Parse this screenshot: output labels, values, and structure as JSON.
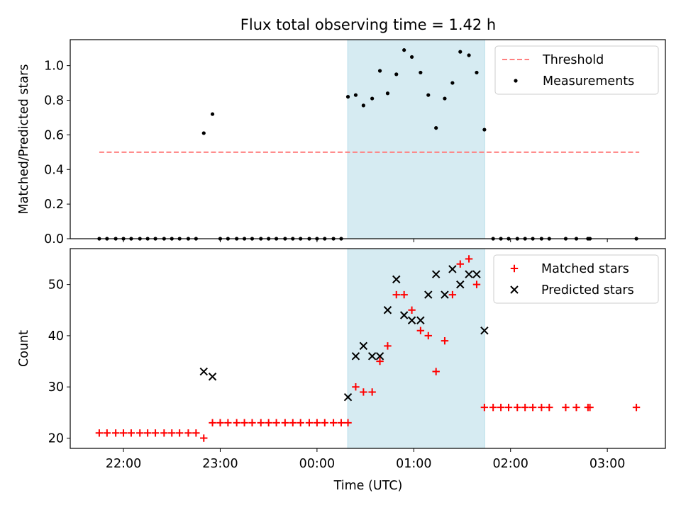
{
  "chart_data": {
    "type": "scatter",
    "title": "Flux total observing time = 1.42 h",
    "xlabel": "Time (UTC)",
    "x_ticks": [
      "22:00",
      "23:00",
      "00:00",
      "01:00",
      "02:00",
      "03:00"
    ],
    "x_tick_hours": [
      22.0,
      23.0,
      24.0,
      25.0,
      26.0,
      27.0
    ],
    "x_range_hours": [
      21.45,
      27.6
    ],
    "shaded_interval_hours": [
      24.317,
      25.733
    ],
    "shade_color": "#add8e6",
    "panels": [
      {
        "ylabel": "Matched/Predicted stars",
        "ylim": [
          0,
          1.15
        ],
        "yticks": [
          "0.0",
          "0.2",
          "0.4",
          "0.6",
          "0.8",
          "1.0"
        ],
        "ytick_values": [
          0,
          0.2,
          0.4,
          0.6,
          0.8,
          1.0
        ],
        "legend": {
          "position": "upper right",
          "entries": [
            "Threshold",
            "Measurements"
          ]
        },
        "series": [
          {
            "name": "Threshold",
            "type": "line",
            "style": "dashed",
            "color": "#ff8080",
            "x": [
              21.75,
              27.33
            ],
            "y": [
              0.5,
              0.5
            ]
          },
          {
            "name": "Measurements",
            "type": "scatter",
            "marker": "dot",
            "color": "#000000",
            "x": [
              21.75,
              21.83,
              21.92,
              22.0,
              22.08,
              22.17,
              22.25,
              22.33,
              22.42,
              22.5,
              22.58,
              22.67,
              22.75,
              22.83,
              22.92,
              23.0,
              23.08,
              23.17,
              23.25,
              23.33,
              23.42,
              23.5,
              23.58,
              23.67,
              23.75,
              23.83,
              23.92,
              24.0,
              24.08,
              24.17,
              24.25,
              24.32,
              24.4,
              24.48,
              24.57,
              24.65,
              24.73,
              24.82,
              24.9,
              24.98,
              25.07,
              25.15,
              25.23,
              25.32,
              25.4,
              25.48,
              25.57,
              25.65,
              25.73,
              25.82,
              25.9,
              25.98,
              26.07,
              26.15,
              26.23,
              26.32,
              26.4,
              26.57,
              26.68,
              26.8,
              26.82,
              27.3
            ],
            "y": [
              0,
              0,
              0,
              0,
              0,
              0,
              0,
              0,
              0,
              0,
              0,
              0,
              0,
              0.61,
              0.72,
              0,
              0,
              0,
              0,
              0,
              0,
              0,
              0,
              0,
              0,
              0,
              0,
              0,
              0,
              0,
              0,
              0.82,
              0.83,
              0.77,
              0.81,
              0.97,
              0.84,
              0.95,
              1.09,
              1.05,
              0.96,
              0.83,
              0.64,
              0.81,
              0.9,
              1.08,
              1.06,
              0.96,
              0.63,
              0,
              0,
              0,
              0,
              0,
              0,
              0,
              0,
              0,
              0,
              0,
              0,
              0
            ]
          }
        ]
      },
      {
        "ylabel": "Count",
        "ylim": [
          18,
          57
        ],
        "yticks": [
          "20",
          "30",
          "40",
          "50"
        ],
        "ytick_values": [
          20,
          30,
          40,
          50
        ],
        "legend": {
          "position": "upper right",
          "entries": [
            "Matched stars",
            "Predicted stars"
          ]
        },
        "series": [
          {
            "name": "Matched stars",
            "type": "scatter",
            "marker": "plus",
            "color": "#ff0000",
            "x": [
              21.75,
              21.83,
              21.92,
              22.0,
              22.08,
              22.17,
              22.25,
              22.33,
              22.42,
              22.5,
              22.58,
              22.67,
              22.75,
              22.83,
              22.92,
              23.0,
              23.08,
              23.17,
              23.25,
              23.33,
              23.42,
              23.5,
              23.58,
              23.67,
              23.75,
              23.83,
              23.92,
              24.0,
              24.08,
              24.17,
              24.25,
              24.32,
              24.4,
              24.48,
              24.57,
              24.65,
              24.73,
              24.82,
              24.9,
              24.98,
              25.07,
              25.15,
              25.23,
              25.32,
              25.4,
              25.48,
              25.57,
              25.65,
              25.73,
              25.82,
              25.9,
              25.98,
              26.07,
              26.15,
              26.23,
              26.32,
              26.4,
              26.57,
              26.68,
              26.8,
              26.82,
              27.3
            ],
            "y": [
              21,
              21,
              21,
              21,
              21,
              21,
              21,
              21,
              21,
              21,
              21,
              21,
              21,
              20,
              23,
              23,
              23,
              23,
              23,
              23,
              23,
              23,
              23,
              23,
              23,
              23,
              23,
              23,
              23,
              23,
              23,
              23,
              30,
              29,
              29,
              35,
              38,
              48,
              48,
              45,
              41,
              40,
              33,
              39,
              48,
              54,
              55,
              50,
              26,
              26,
              26,
              26,
              26,
              26,
              26,
              26,
              26,
              26,
              26,
              26,
              26,
              26
            ]
          },
          {
            "name": "Predicted stars",
            "type": "scatter",
            "marker": "x",
            "color": "#000000",
            "x": [
              22.83,
              22.92,
              24.32,
              24.4,
              24.48,
              24.57,
              24.65,
              24.73,
              24.82,
              24.9,
              24.98,
              25.07,
              25.15,
              25.23,
              25.32,
              25.4,
              25.48,
              25.57,
              25.65,
              25.73
            ],
            "y": [
              33,
              32,
              28,
              36,
              38,
              36,
              36,
              45,
              51,
              44,
              43,
              43,
              48,
              52,
              48,
              53,
              50,
              52,
              52,
              41
            ]
          }
        ]
      }
    ]
  }
}
